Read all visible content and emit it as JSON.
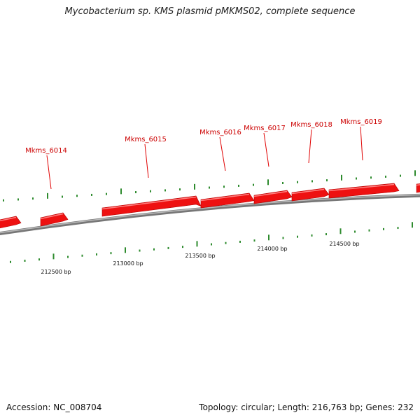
{
  "title": "Mycobacterium sp. KMS plasmid pMKMS02, complete sequence",
  "footer": {
    "accession": "Accession: NC_008704",
    "summary": "Topology: circular; Length: 216,763 bp; Genes: 232"
  },
  "colors": {
    "gene": "#ee1111",
    "gene_label": "#cc0000",
    "tick": "#2e8b2e",
    "backbone": "#888888"
  },
  "genes": [
    {
      "name": "Mkms_6014"
    },
    {
      "name": "Mkms_6015"
    },
    {
      "name": "Mkms_6016"
    },
    {
      "name": "Mkms_6017"
    },
    {
      "name": "Mkms_6018"
    },
    {
      "name": "Mkms_6019"
    }
  ],
  "position_labels": [
    "212500 bp",
    "213000 bp",
    "213500 bp",
    "214000 bp",
    "214500 bp"
  ]
}
